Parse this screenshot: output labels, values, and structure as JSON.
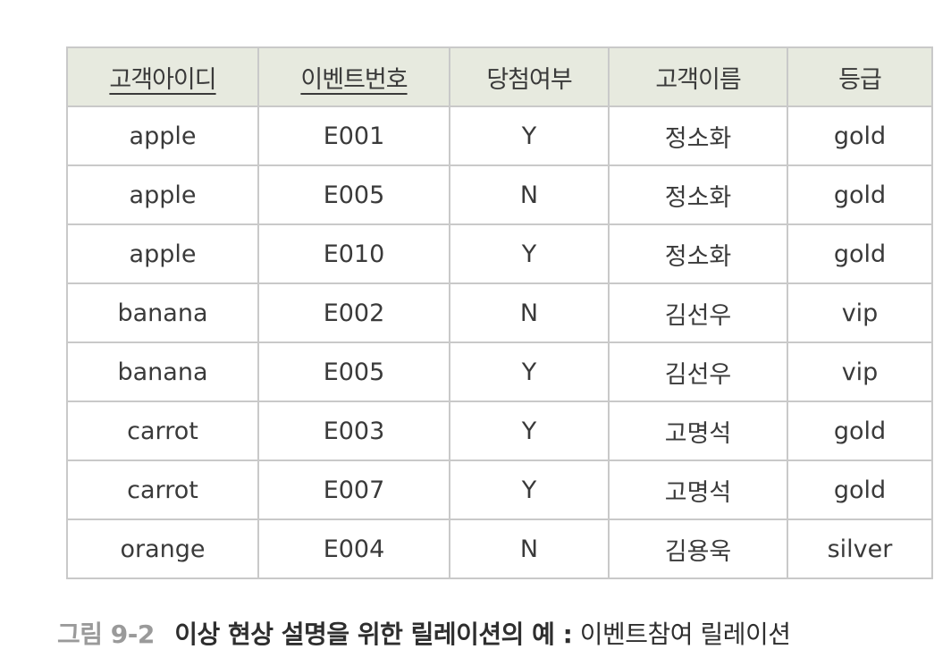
{
  "table": {
    "columns": [
      {
        "label": "고객아이디",
        "key": true
      },
      {
        "label": "이벤트번호",
        "key": true
      },
      {
        "label": "당첨여부",
        "key": false
      },
      {
        "label": "고객이름",
        "key": false
      },
      {
        "label": "등급",
        "key": false
      }
    ],
    "rows": [
      [
        "apple",
        "E001",
        "Y",
        "정소화",
        "gold"
      ],
      [
        "apple",
        "E005",
        "N",
        "정소화",
        "gold"
      ],
      [
        "apple",
        "E010",
        "Y",
        "정소화",
        "gold"
      ],
      [
        "banana",
        "E002",
        "N",
        "김선우",
        "vip"
      ],
      [
        "banana",
        "E005",
        "Y",
        "김선우",
        "vip"
      ],
      [
        "carrot",
        "E003",
        "Y",
        "고명석",
        "gold"
      ],
      [
        "carrot",
        "E007",
        "Y",
        "고명석",
        "gold"
      ],
      [
        "orange",
        "E004",
        "N",
        "김용욱",
        "silver"
      ]
    ]
  },
  "caption": {
    "label": "그림 9-2",
    "title": "이상 현상 설명을 위한 릴레이션의 예 :",
    "relation": "이벤트참여 릴레이션"
  }
}
